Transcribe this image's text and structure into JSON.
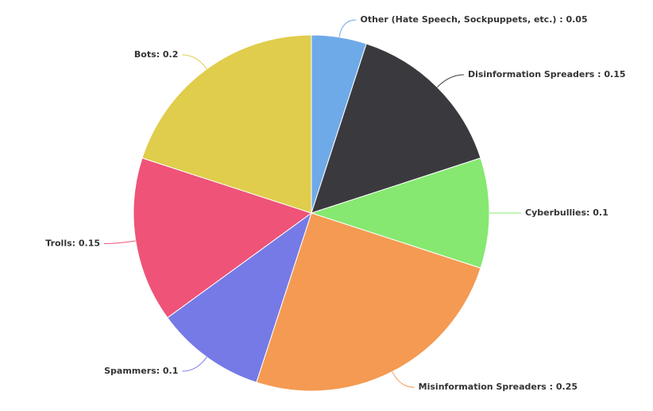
{
  "chart_data": {
    "type": "pie",
    "values": [
      0.05,
      0.15,
      0.1,
      0.25,
      0.1,
      0.15,
      0.2
    ],
    "value_labels": [
      "Other (Hate Speech, Sockpuppets, etc.) : 0.05",
      "Disinformation Spreaders : 0.15",
      "Cyberbullies: 0.1",
      "Misinformation Spreaders : 0.25",
      "Spammers: 0.1",
      "Trolls: 0.15",
      "Bots: 0.2"
    ],
    "colors": [
      "#6faae8",
      "#3a3a3e",
      "#86e870",
      "#f49a52",
      "#767ae6",
      "#ef5378",
      "#dfcd4b"
    ]
  }
}
